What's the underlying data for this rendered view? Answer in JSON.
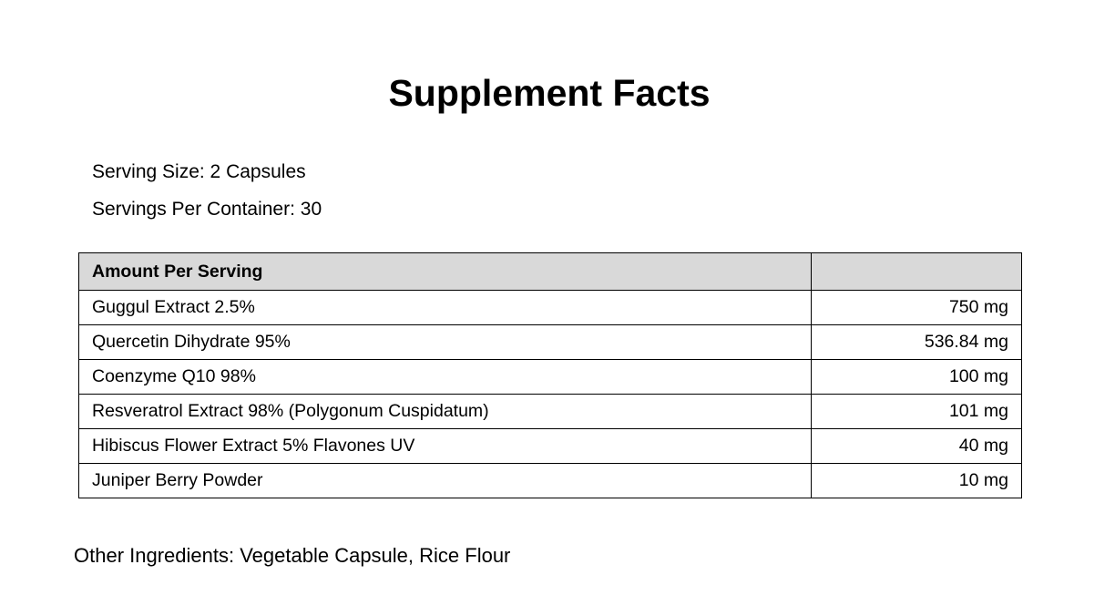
{
  "title": "Supplement Facts",
  "serving_size": "Serving Size: 2 Capsules",
  "servings_per_container": "Servings Per Container: 30",
  "table": {
    "header": {
      "name": "Amount Per Serving",
      "amount": ""
    },
    "rows": [
      {
        "name": "Guggul Extract 2.5%",
        "amount": "750 mg"
      },
      {
        "name": "Quercetin Dihydrate 95%",
        "amount": "536.84 mg"
      },
      {
        "name": "Coenzyme Q10 98%",
        "amount": "100 mg"
      },
      {
        "name": "Resveratrol Extract 98% (Polygonum Cuspidatum)",
        "amount": "101 mg"
      },
      {
        "name": "Hibiscus Flower Extract 5% Flavones UV",
        "amount": "40 mg"
      },
      {
        "name": "Juniper Berry Powder",
        "amount": "10 mg"
      }
    ]
  },
  "other_ingredients": "Other Ingredients: Vegetable Capsule, Rice Flour",
  "colors": {
    "header_background": "#d9d9d9",
    "border": "#000000",
    "text": "#000000"
  }
}
